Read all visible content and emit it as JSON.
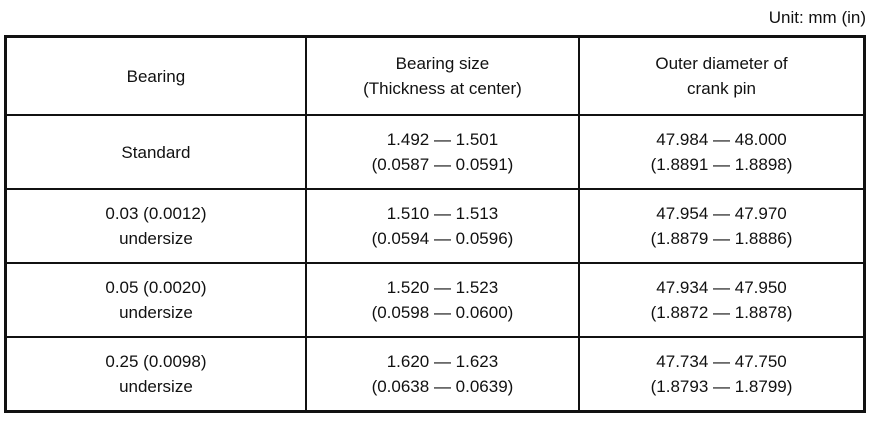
{
  "unit_label": "Unit: mm (in)",
  "headers": [
    {
      "line1": "Bearing",
      "line2": ""
    },
    {
      "line1": "Bearing size",
      "line2": "(Thickness at center)"
    },
    {
      "line1": "Outer diameter of",
      "line2": "crank pin"
    }
  ],
  "rows": [
    {
      "bearing": [
        "Standard",
        ""
      ],
      "size": [
        "1.492 — 1.501",
        "(0.0587 — 0.0591)"
      ],
      "diameter": [
        "47.984 — 48.000",
        "(1.8891 — 1.8898)"
      ]
    },
    {
      "bearing": [
        "0.03 (0.0012)",
        "undersize"
      ],
      "size": [
        "1.510 — 1.513",
        "(0.0594 — 0.0596)"
      ],
      "diameter": [
        "47.954 — 47.970",
        "(1.8879 — 1.8886)"
      ]
    },
    {
      "bearing": [
        "0.05 (0.0020)",
        "undersize"
      ],
      "size": [
        "1.520 — 1.523",
        "(0.0598 — 0.0600)"
      ],
      "diameter": [
        "47.934 — 47.950",
        "(1.8872 — 1.8878)"
      ]
    },
    {
      "bearing": [
        "0.25 (0.0098)",
        "undersize"
      ],
      "size": [
        "1.620 — 1.623",
        "(0.0638 — 0.0639)"
      ],
      "diameter": [
        "47.734 — 47.750",
        "(1.8793 — 1.8799)"
      ]
    }
  ]
}
